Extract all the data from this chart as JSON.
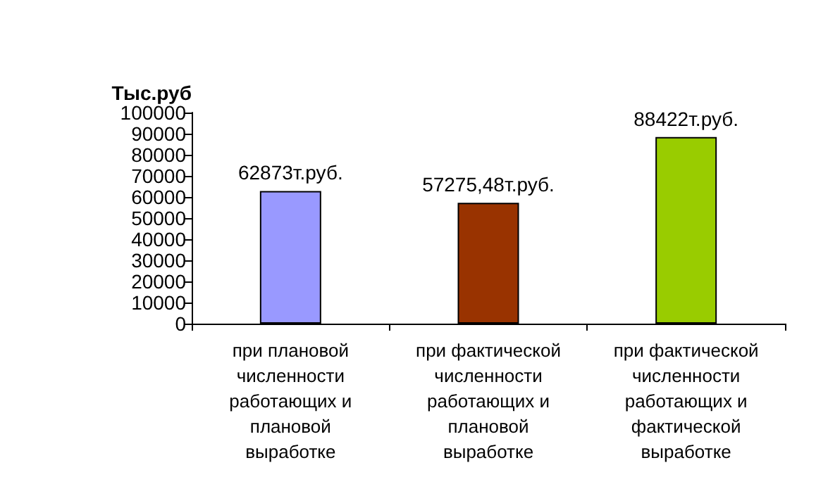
{
  "chart_data": {
    "type": "bar",
    "ylabel": "Тыс.руб",
    "categories": [
      "при плановой численности работающих и плановой выработке",
      "при фактической численности работающих и плановой выработке",
      "при фактической численности работающих и фактической выработке"
    ],
    "values": [
      62873,
      57275.48,
      88422
    ],
    "colors": [
      "#9999ff",
      "#993300",
      "#99cc00"
    ],
    "value_labels": [
      "62873т.руб.",
      "57275,48т.руб.",
      "88422т.руб."
    ],
    "ylim": [
      0,
      100000
    ],
    "yticks": [
      0,
      10000,
      20000,
      30000,
      40000,
      50000,
      60000,
      70000,
      80000,
      90000,
      100000
    ],
    "grid": false
  }
}
